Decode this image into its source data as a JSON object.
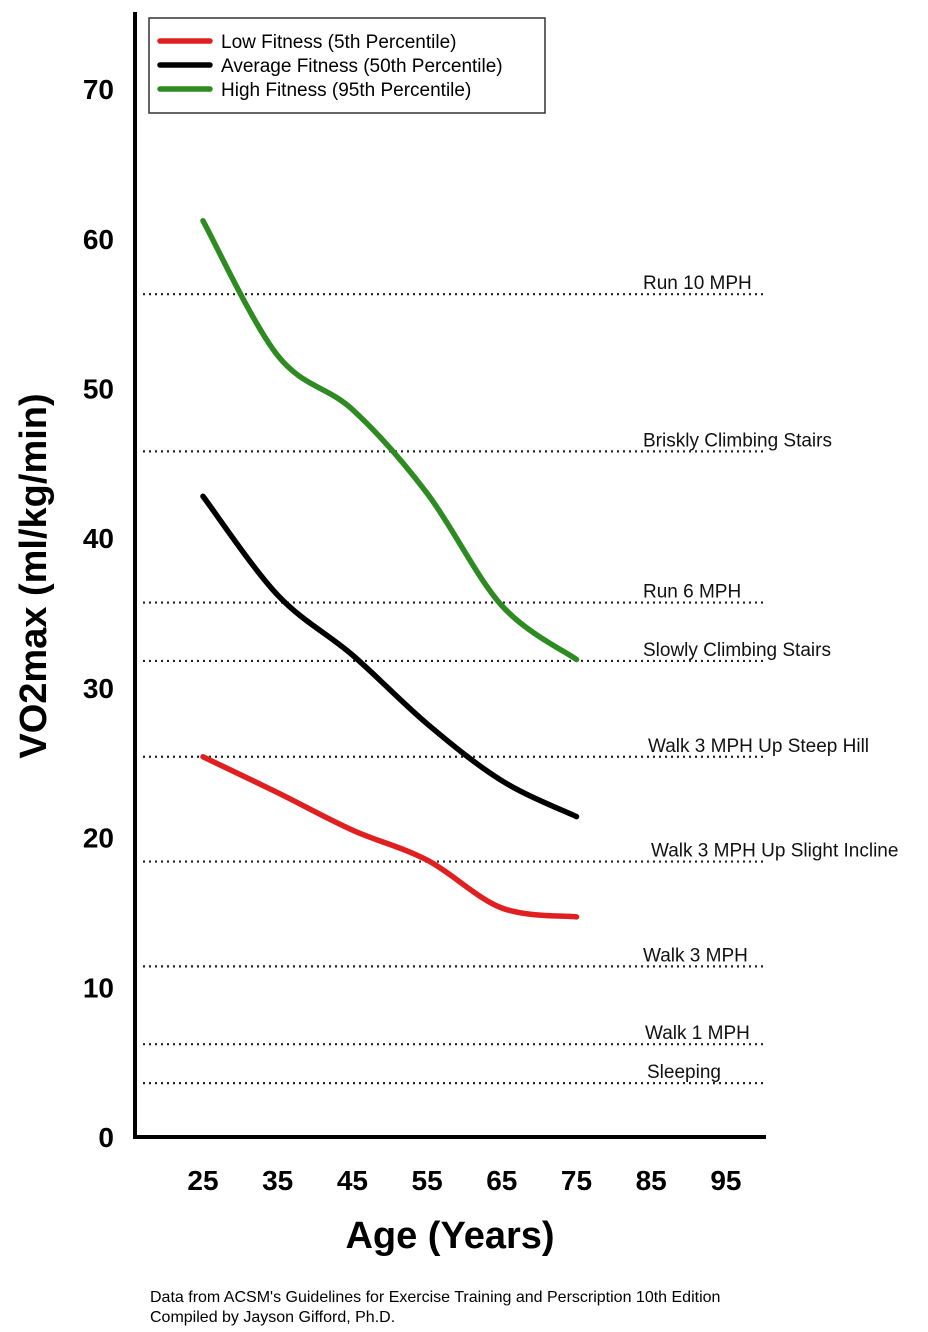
{
  "chart_data": {
    "type": "line",
    "xlabel": "Age (Years)",
    "ylabel": "VO2max (ml/kg/min)",
    "xlim": [
      16,
      100
    ],
    "ylim": [
      0,
      75
    ],
    "x_ticks": [
      "25",
      "35",
      "45",
      "55",
      "65",
      "75",
      "85",
      "95"
    ],
    "y_ticks": [
      "0",
      "10",
      "20",
      "30",
      "40",
      "50",
      "60",
      "70"
    ],
    "x": [
      25,
      35,
      45,
      55,
      65,
      75
    ],
    "legend_position": "top-left",
    "series": [
      {
        "name": "Low Fitness (5th Percentile)",
        "color": "#e02020",
        "values": [
          25.4,
          23.0,
          20.5,
          18.5,
          15.3,
          14.7
        ]
      },
      {
        "name": "Average Fitness (50th Percentile)",
        "color": "#000000",
        "values": [
          42.8,
          36.2,
          32.2,
          27.6,
          23.8,
          21.4
        ]
      },
      {
        "name": "High Fitness (95th Percentile)",
        "color": "#2e8b22",
        "values": [
          61.2,
          52.2,
          48.6,
          43.0,
          35.5,
          31.9
        ]
      }
    ],
    "reference_lines": [
      {
        "label": "Run 10 MPH",
        "value": 56.3
      },
      {
        "label": "Briskly Climbing Stairs",
        "value": 45.8
      },
      {
        "label": "Run 6 MPH",
        "value": 35.7
      },
      {
        "label": "Slowly Climbing Stairs",
        "value": 31.8
      },
      {
        "label": "Walk 3 MPH Up Steep Hill",
        "value": 25.4
      },
      {
        "label": "Walk 3 MPH Up Slight Incline",
        "value": 18.4
      },
      {
        "label": "Walk 3 MPH",
        "value": 11.4
      },
      {
        "label": "Walk 1 MPH",
        "value": 6.2
      },
      {
        "label": "Sleeping",
        "value": 3.6
      }
    ],
    "grid": false
  },
  "footer": {
    "line1": "Data from ACSM's Guidelines for Exercise Training and Perscription 10th Edition",
    "line2": "Compiled by Jayson Gifford, Ph.D."
  }
}
